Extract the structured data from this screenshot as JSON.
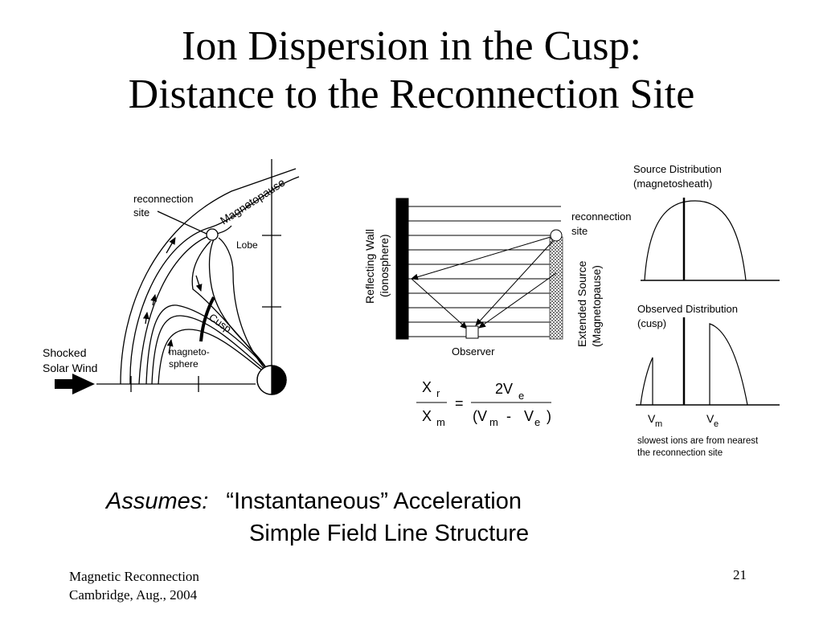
{
  "title": {
    "line1": "Ion Dispersion in the Cusp:",
    "line2": "Distance to the Reconnection Site"
  },
  "left_diagram": {
    "reconnection_site": [
      "reconnection",
      "site"
    ],
    "magnetopause": "Magnetopause",
    "lobe": "Lobe",
    "cusp": "Cusp",
    "magnetosphere": [
      "magneto-",
      "sphere"
    ],
    "shocked_solar_wind": [
      "Shocked",
      "Solar Wind"
    ]
  },
  "middle_diagram": {
    "reflecting_wall": [
      "Reflecting Wall",
      "(ionosphere)"
    ],
    "reconnection_site": [
      "reconnection",
      "site"
    ],
    "extended_source": [
      "Extended Source",
      "(Magnetopause)"
    ],
    "observer": "Observer"
  },
  "formula": {
    "lhs_num": "X",
    "lhs_num_sub": "r",
    "lhs_den": "X",
    "lhs_den_sub": "m",
    "equals": "=",
    "rhs_num": "2V",
    "rhs_num_sub": "e",
    "rhs_den_open": "(V",
    "rhs_den_sub1": "m",
    "rhs_den_minus": "-",
    "rhs_den_v": "V",
    "rhs_den_sub2": "e",
    "rhs_den_close": ")"
  },
  "right_diagram": {
    "source_distribution": [
      "Source Distribution",
      "(magnetosheath)"
    ],
    "observed_distribution": [
      "Observed Distribution",
      "(cusp)"
    ],
    "vm": "V",
    "vm_sub": "m",
    "ve": "V",
    "ve_sub": "e",
    "note": [
      "slowest ions are from nearest",
      "the reconnection site"
    ]
  },
  "assumes": {
    "label": "Assumes:",
    "line1": "“Instantaneous” Acceleration",
    "line2": "Simple Field Line Structure"
  },
  "footer": {
    "line1": "Magnetic Reconnection",
    "line2": "Cambridge, Aug., 2004",
    "page": "21"
  }
}
